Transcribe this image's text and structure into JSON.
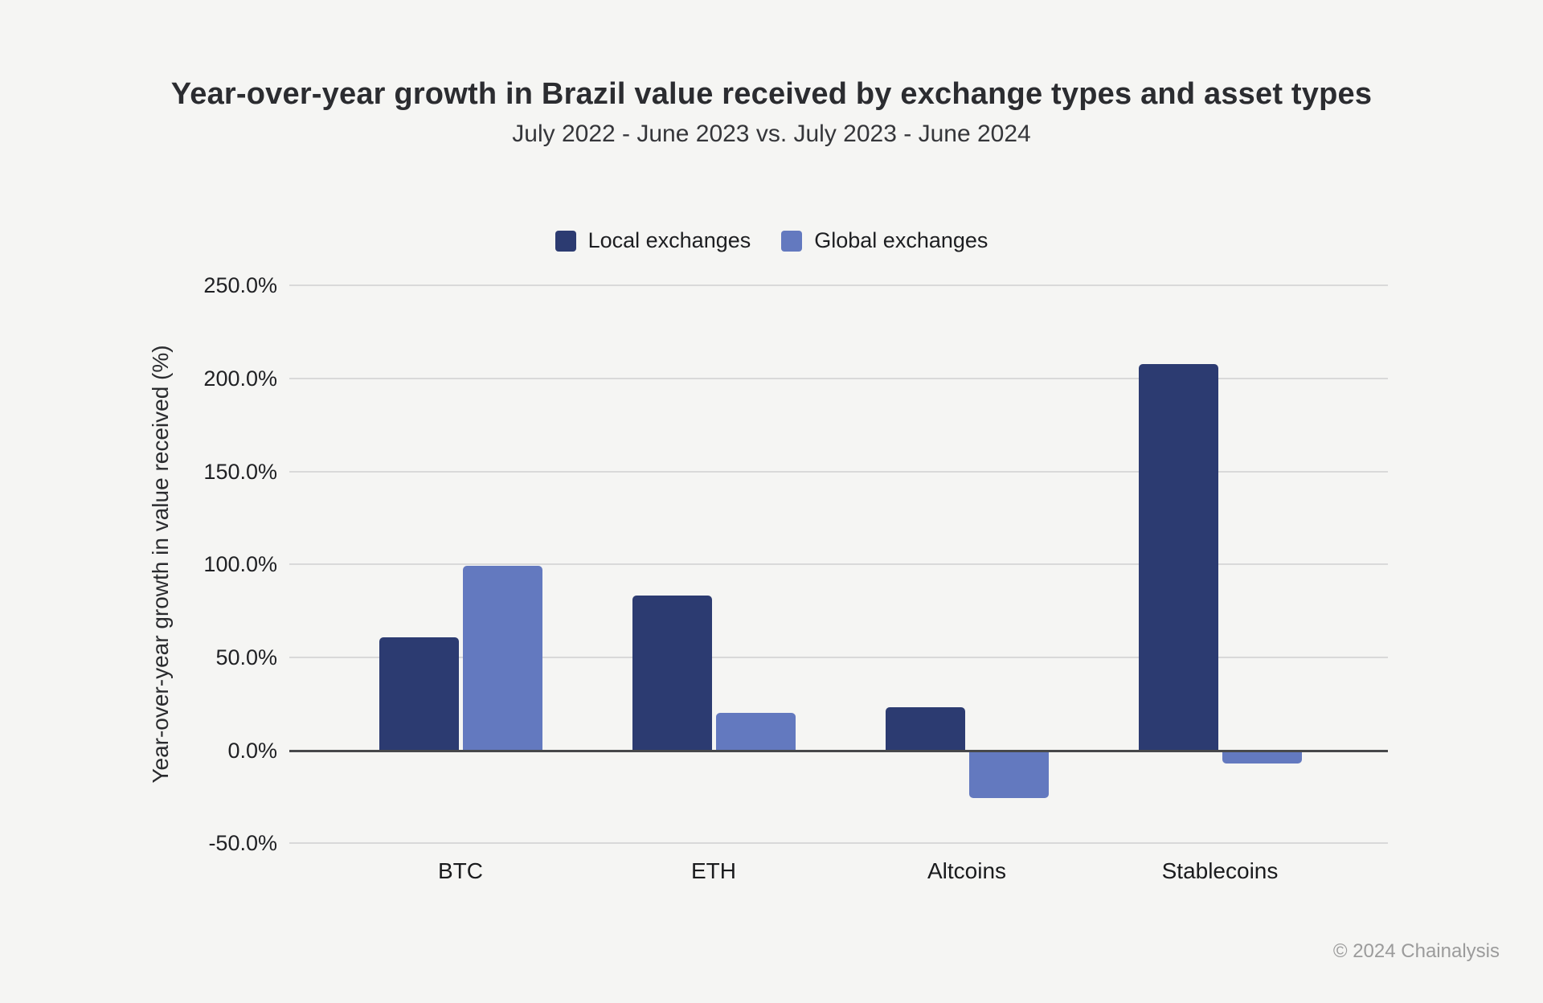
{
  "header": {
    "title": "Year-over-year growth in Brazil value received by exchange types and asset types",
    "subtitle": "July 2022 - June 2023 vs. July 2023 - June 2024"
  },
  "footer": {
    "copyright": "© 2024 Chainalysis"
  },
  "chart_data": {
    "type": "bar",
    "title": "Year-over-year growth in Brazil value received by exchange types and asset types",
    "subtitle": "July 2022 - June 2023 vs. July 2023 - June 2024",
    "xlabel": "",
    "ylabel": "Year-over-year growth in value received (%)",
    "categories": [
      "BTC",
      "ETH",
      "Altcoins",
      "Stablecoins"
    ],
    "series": [
      {
        "name": "Local exchanges",
        "color": "#2c3b71",
        "values": [
          60.9,
          83.2,
          23.3,
          207.8
        ]
      },
      {
        "name": "Global exchanges",
        "color": "#6379bf",
        "values": [
          99.4,
          20.1,
          -25.7,
          -7.1
        ]
      }
    ],
    "ylim": [
      -50,
      250
    ],
    "yticks": [
      {
        "value": 250,
        "label": "250.0%"
      },
      {
        "value": 200,
        "label": "200.0%"
      },
      {
        "value": 150,
        "label": "150.0%"
      },
      {
        "value": 100,
        "label": "100.0%"
      },
      {
        "value": 50,
        "label": "50.0%"
      },
      {
        "value": 0,
        "label": "0.0%"
      },
      {
        "value": -50,
        "label": "-50.0%"
      }
    ],
    "grid": "horizontal",
    "legend_position": "top-center",
    "colors": {
      "background": "#f5f5f3",
      "grid": "#d9d9d9",
      "axis": "#47484a"
    }
  }
}
